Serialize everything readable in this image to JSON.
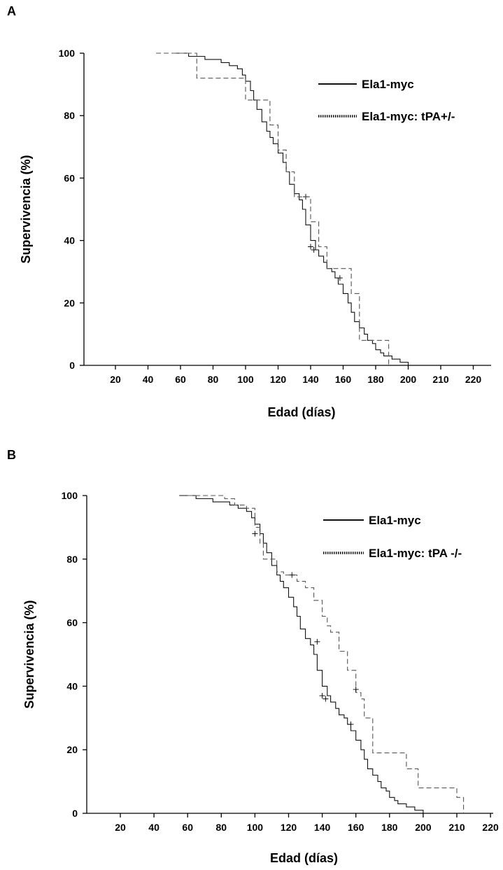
{
  "chart_data": [
    {
      "type": "line",
      "panel_label": "A",
      "xlabel": "Edad (días)",
      "ylabel": "Supervivencia (%)",
      "x_ticks": [
        "20",
        "40",
        "60",
        "80",
        "100",
        "120",
        "140",
        "160",
        "180",
        "200",
        "210",
        "220"
      ],
      "y_ticks": [
        "0",
        "20",
        "40",
        "60",
        "80",
        "100"
      ],
      "ylim": [
        0,
        100
      ],
      "grid": false,
      "legend_position": "top-right",
      "legend": [
        {
          "label": "Ela1-myc",
          "style": "solid"
        },
        {
          "label": "Ela1-myc: tPA+/-",
          "style": "dashed"
        }
      ],
      "series": [
        {
          "name": "Ela1-myc",
          "style": "solid",
          "x": [
            57,
            65,
            75,
            85,
            90,
            95,
            98,
            100,
            103,
            105,
            107,
            110,
            113,
            115,
            117,
            120,
            123,
            125,
            127,
            130,
            133,
            135,
            137,
            140,
            143,
            145,
            148,
            150,
            153,
            155,
            157,
            160,
            163,
            165,
            167,
            170,
            173,
            175,
            178,
            180,
            183,
            185,
            190,
            195,
            200
          ],
          "y": [
            100,
            99,
            98,
            97,
            96,
            95,
            93,
            91,
            88,
            85,
            82,
            78,
            75,
            73,
            71,
            68,
            65,
            62,
            58,
            55,
            53,
            50,
            45,
            40,
            37,
            35,
            33,
            31,
            30,
            28,
            26,
            23,
            20,
            17,
            14,
            12,
            10,
            8,
            7,
            5,
            4,
            3,
            2,
            1,
            0
          ],
          "censored": [
            [
              137,
              54
            ],
            [
              140,
              38
            ],
            [
              142,
              37
            ],
            [
              158,
              28
            ]
          ]
        },
        {
          "name": "Ela1-myc: tPA+/-",
          "style": "dashed",
          "x": [
            45,
            70,
            95,
            100,
            110,
            115,
            120,
            125,
            130,
            135,
            140,
            145,
            150,
            160,
            165,
            170,
            180,
            188
          ],
          "y": [
            100,
            92,
            92,
            85,
            85,
            77,
            69,
            62,
            54,
            54,
            46,
            38,
            31,
            31,
            23,
            8,
            8,
            0
          ],
          "censored": []
        }
      ]
    },
    {
      "type": "line",
      "panel_label": "B",
      "xlabel": "Edad (días)",
      "ylabel": "Supervivencia (%)",
      "x_ticks": [
        "20",
        "40",
        "60",
        "80",
        "100",
        "120",
        "140",
        "160",
        "180",
        "200",
        "210",
        "220"
      ],
      "y_ticks": [
        "0",
        "20",
        "40",
        "60",
        "80",
        "100"
      ],
      "ylim": [
        0,
        100
      ],
      "grid": false,
      "legend_position": "top-right",
      "legend": [
        {
          "label": "Ela1-myc",
          "style": "solid"
        },
        {
          "label": "Ela1-myc: tPA -/-",
          "style": "dashed"
        }
      ],
      "series": [
        {
          "name": "Ela1-myc",
          "style": "solid",
          "x": [
            55,
            65,
            75,
            85,
            90,
            95,
            98,
            100,
            103,
            105,
            107,
            110,
            113,
            115,
            117,
            120,
            123,
            125,
            127,
            130,
            133,
            135,
            137,
            140,
            143,
            145,
            148,
            150,
            153,
            155,
            157,
            160,
            163,
            165,
            167,
            170,
            173,
            175,
            178,
            180,
            183,
            185,
            190,
            195,
            200
          ],
          "y": [
            100,
            99,
            98,
            97,
            96,
            95,
            93,
            91,
            88,
            85,
            82,
            78,
            75,
            73,
            71,
            68,
            65,
            62,
            58,
            55,
            53,
            50,
            45,
            40,
            37,
            35,
            33,
            31,
            30,
            28,
            26,
            23,
            20,
            17,
            14,
            12,
            10,
            8,
            7,
            5,
            4,
            3,
            2,
            1,
            0
          ],
          "censored": [
            [
              137,
              54
            ],
            [
              140,
              37
            ],
            [
              142,
              36
            ],
            [
              157,
              28
            ]
          ]
        },
        {
          "name": "Ela1-myc: tPA -/-",
          "style": "dashed",
          "x": [
            60,
            82,
            88,
            95,
            100,
            103,
            105,
            110,
            113,
            117,
            120,
            125,
            130,
            135,
            140,
            143,
            145,
            150,
            155,
            160,
            163,
            165,
            170,
            180,
            190,
            197,
            200,
            210,
            212
          ],
          "y": [
            100,
            99,
            97,
            96,
            90,
            85,
            80,
            80,
            76,
            75,
            75,
            73,
            71,
            67,
            62,
            59,
            57,
            51,
            45,
            38,
            36,
            30,
            19,
            19,
            14,
            8,
            8,
            5,
            0
          ],
          "censored": [
            [
              100,
              88
            ],
            [
              122,
              75
            ],
            [
              160,
              39
            ]
          ]
        }
      ]
    }
  ]
}
